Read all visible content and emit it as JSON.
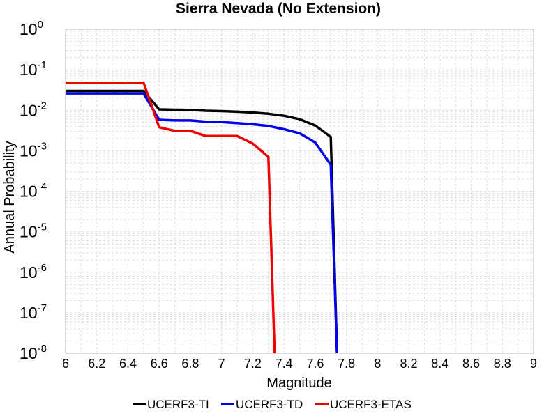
{
  "chart_data": {
    "type": "line",
    "title": "Sierra Nevada  (No Extension)",
    "xlabel": "Magnitude",
    "ylabel": "Annual Probability",
    "xlim": [
      6,
      9
    ],
    "ylim": [
      1e-08,
      1
    ],
    "yscale": "log",
    "grid": true,
    "legend_placement": "bottom-center",
    "x_ticks": [
      "6",
      "6.2",
      "6.4",
      "6.6",
      "6.8",
      "7",
      "7.2",
      "7.4",
      "7.6",
      "7.8",
      "8",
      "8.2",
      "8.4",
      "8.6",
      "8.8",
      "9"
    ],
    "y_ticks": [
      {
        "base": "10",
        "exp": "-8"
      },
      {
        "base": "10",
        "exp": "-7"
      },
      {
        "base": "10",
        "exp": "-6"
      },
      {
        "base": "10",
        "exp": "-5"
      },
      {
        "base": "10",
        "exp": "-4"
      },
      {
        "base": "10",
        "exp": "-3"
      },
      {
        "base": "10",
        "exp": "-2"
      },
      {
        "base": "10",
        "exp": "-1"
      },
      {
        "base": "10",
        "exp": "0"
      }
    ],
    "series": [
      {
        "name": "UCERF3-TI",
        "color": "#000000",
        "x": [
          6.0,
          6.1,
          6.2,
          6.3,
          6.4,
          6.5,
          6.6,
          6.7,
          6.8,
          6.9,
          7.0,
          7.1,
          7.2,
          7.3,
          7.4,
          7.5,
          7.6,
          7.7,
          7.74
        ],
        "y": [
          0.03,
          0.03,
          0.03,
          0.03,
          0.03,
          0.03,
          0.0105,
          0.0103,
          0.0102,
          0.0097,
          0.0095,
          0.0092,
          0.0088,
          0.0082,
          0.0073,
          0.006,
          0.0042,
          0.0022,
          1e-08
        ]
      },
      {
        "name": "UCERF3-TD",
        "color": "#0000ee",
        "x": [
          6.0,
          6.1,
          6.2,
          6.3,
          6.4,
          6.5,
          6.6,
          6.7,
          6.8,
          6.9,
          7.0,
          7.1,
          7.2,
          7.3,
          7.4,
          7.5,
          7.6,
          7.7,
          7.74
        ],
        "y": [
          0.026,
          0.026,
          0.026,
          0.026,
          0.026,
          0.026,
          0.0058,
          0.0056,
          0.0056,
          0.0052,
          0.0051,
          0.0048,
          0.0045,
          0.0041,
          0.0034,
          0.0027,
          0.0016,
          0.00045,
          1e-08
        ]
      },
      {
        "name": "UCERF3-ETAS",
        "color": "#ee0000",
        "x": [
          6.0,
          6.1,
          6.2,
          6.3,
          6.4,
          6.5,
          6.6,
          6.7,
          6.8,
          6.9,
          7.0,
          7.1,
          7.2,
          7.3,
          7.34
        ],
        "y": [
          0.048,
          0.048,
          0.048,
          0.048,
          0.048,
          0.048,
          0.0038,
          0.0031,
          0.0031,
          0.0023,
          0.0023,
          0.0023,
          0.0015,
          0.0007,
          1e-08
        ]
      }
    ]
  }
}
